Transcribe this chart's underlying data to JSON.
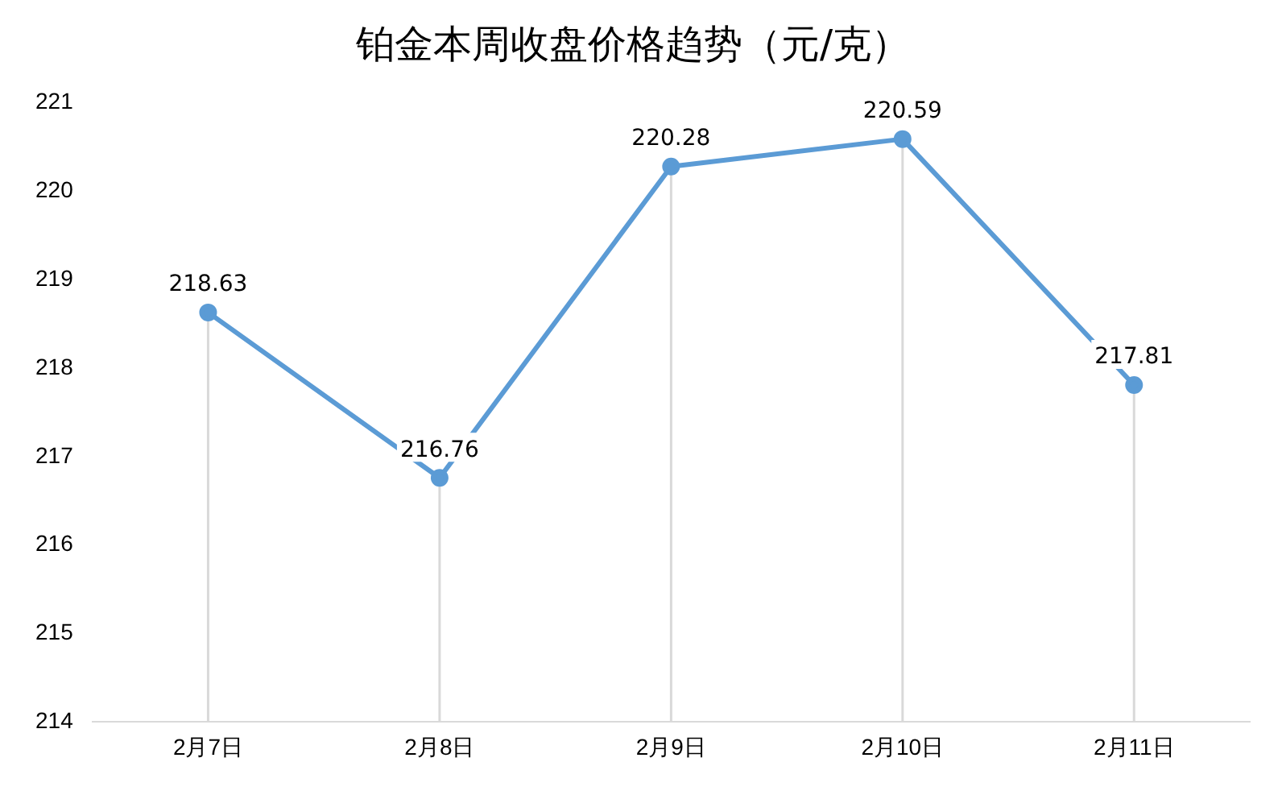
{
  "chart_data": {
    "type": "line",
    "title": "铂金本周收盘价格趋势（元/克）",
    "categories": [
      "2月7日",
      "2月8日",
      "2月9日",
      "2月10日",
      "2月11日"
    ],
    "series": [
      {
        "color": "#5b9bd5",
        "values": [
          218.63,
          216.76,
          220.28,
          220.59,
          217.81
        ]
      }
    ],
    "ylim": [
      214,
      221
    ],
    "yticks": [
      214,
      215,
      216,
      217,
      218,
      219,
      220,
      221
    ],
    "grid": "x",
    "legend": false,
    "marker": "circle",
    "line_style": "solid",
    "data_labels": true
  }
}
